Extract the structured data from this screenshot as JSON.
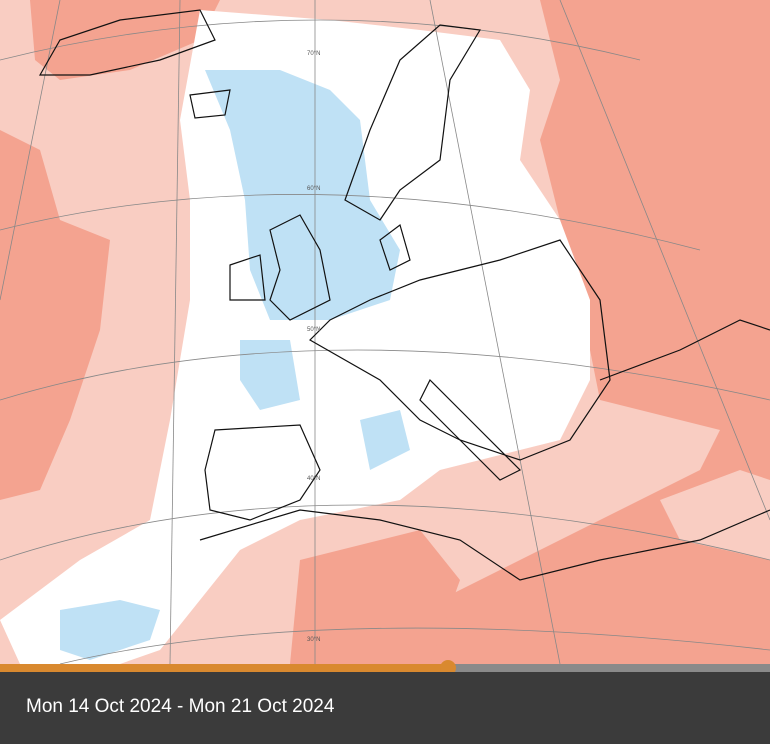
{
  "map": {
    "latitude_labels": [
      "70°N",
      "60°N",
      "50°N",
      "40°N",
      "30°N"
    ]
  },
  "caption": {
    "text": "Mon 14 Oct 2024 - Mon 21 Oct 2024"
  }
}
